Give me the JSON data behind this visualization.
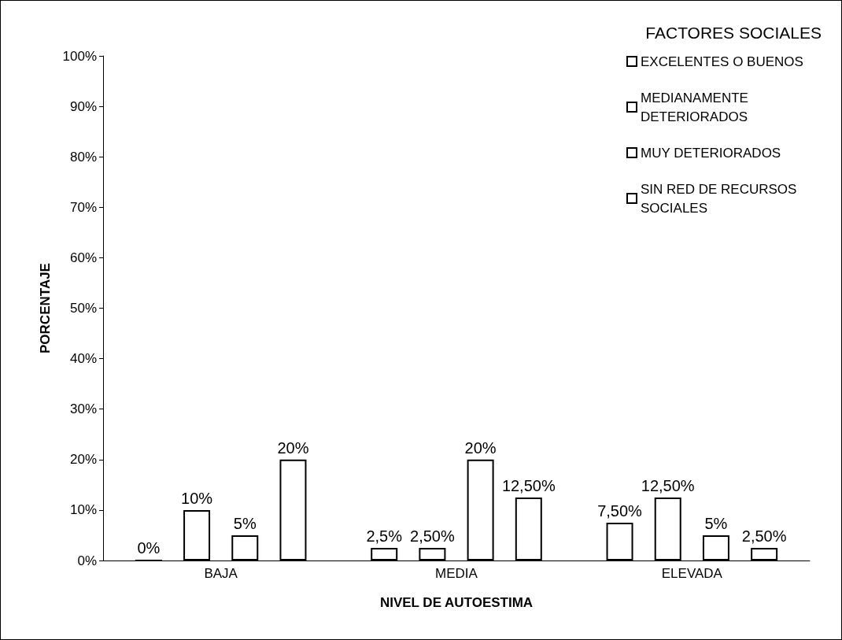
{
  "chart_data": {
    "type": "bar",
    "xlabel": "NIVEL DE AUTOESTIMA",
    "ylabel": "PORCENTAJE",
    "legend_title": "FACTORES SOCIALES",
    "categories": [
      "BAJA",
      "MEDIA",
      "ELEVADA"
    ],
    "series": [
      {
        "name": "EXCELENTES O BUENOS",
        "color": "#ffffff",
        "colors": [
          "#000000",
          "#ffffff",
          "#ffffff"
        ],
        "values": [
          0,
          2.5,
          7.5
        ],
        "value_labels": [
          "0%",
          "2,5%",
          "7,50%"
        ]
      },
      {
        "name": "MEDIANAMENTE DETERIORADOS",
        "color": "#ffffff",
        "values": [
          10,
          2.5,
          12.5
        ],
        "value_labels": [
          "10%",
          "2,50%",
          "12,50%"
        ]
      },
      {
        "name": "MUY DETERIORADOS",
        "color": "#ffffff",
        "values": [
          5,
          20,
          5
        ],
        "value_labels": [
          "5%",
          "20%",
          "5%"
        ]
      },
      {
        "name": "SIN RED DE RECURSOS SOCIALES",
        "color": "#ffffff",
        "values": [
          20,
          12.5,
          2.5
        ],
        "value_labels": [
          "20%",
          "12,50%",
          "2,50%"
        ]
      }
    ],
    "ylim": [
      0,
      100
    ],
    "yticks": [
      {
        "value": 0,
        "label": "0%"
      },
      {
        "value": 10,
        "label": "10%"
      },
      {
        "value": 20,
        "label": "20%"
      },
      {
        "value": 30,
        "label": "30%"
      },
      {
        "value": 40,
        "label": "40%"
      },
      {
        "value": 50,
        "label": "50%"
      },
      {
        "value": 60,
        "label": "60%"
      },
      {
        "value": 70,
        "label": "70%"
      },
      {
        "value": 80,
        "label": "80%"
      },
      {
        "value": 90,
        "label": "90%"
      },
      {
        "value": 100,
        "label": "100%"
      }
    ],
    "grid": false,
    "legend": "top right"
  }
}
